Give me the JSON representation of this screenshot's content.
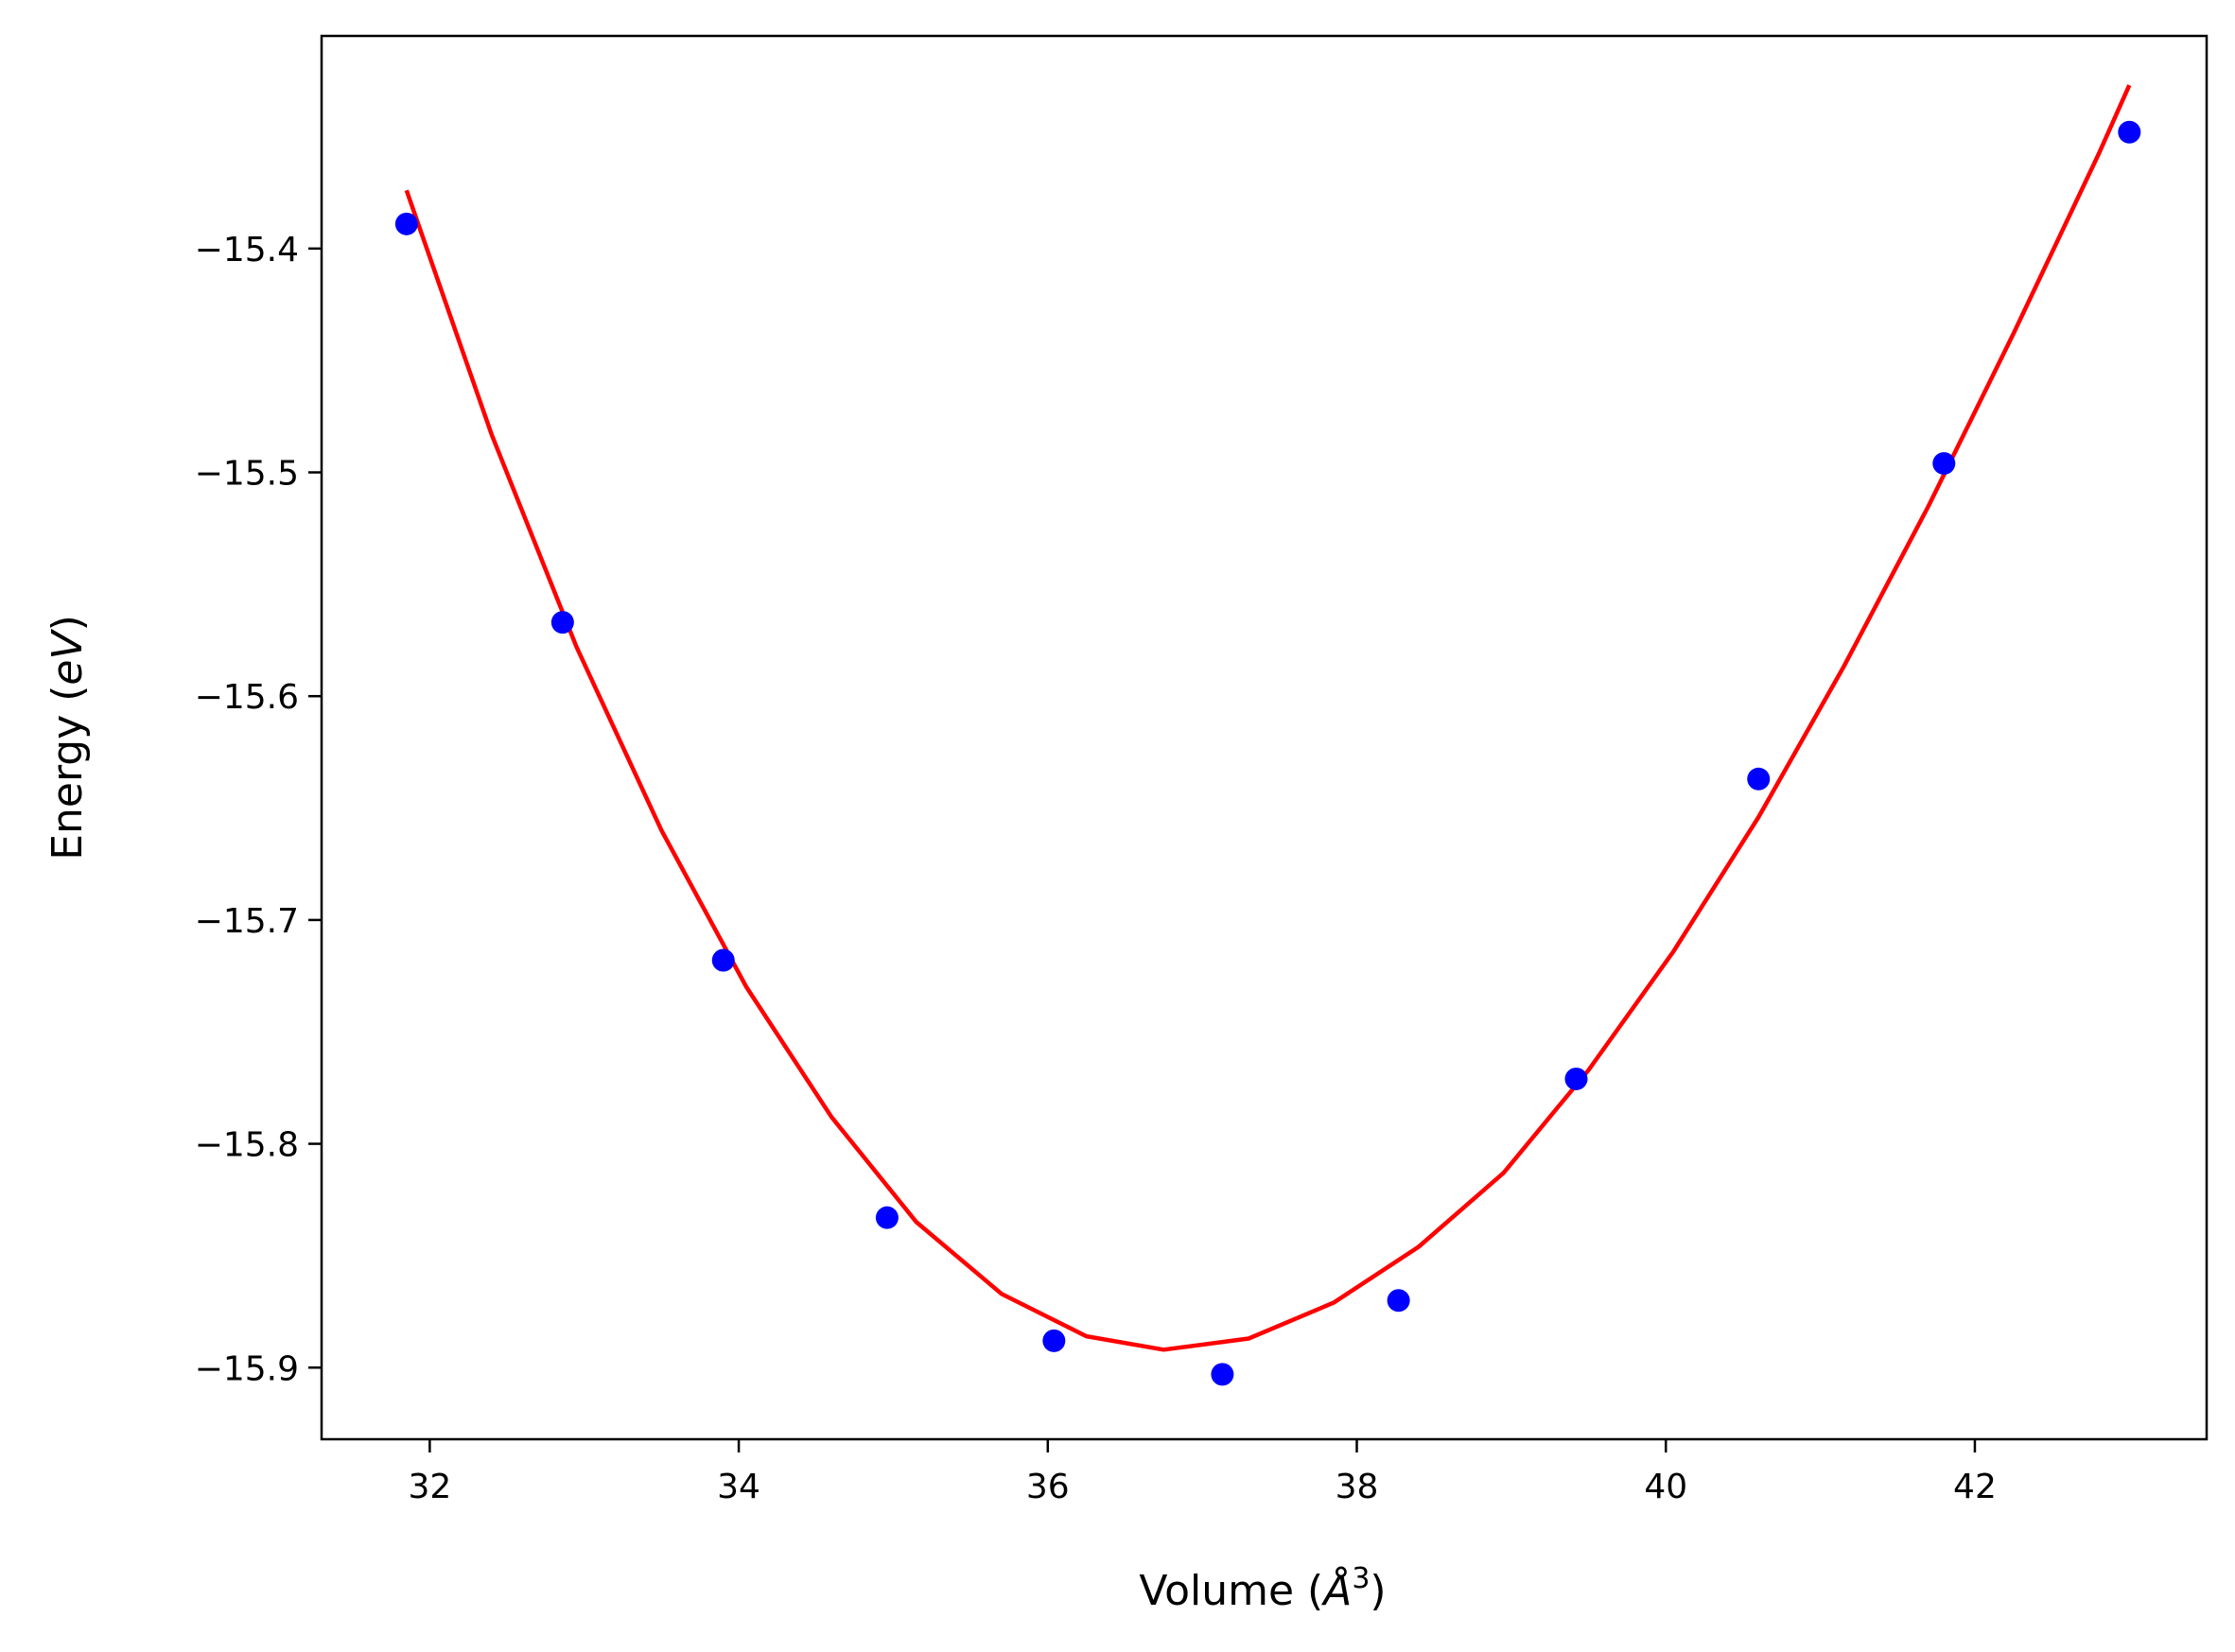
{
  "chart_data": {
    "type": "scatter",
    "title": "",
    "xlabel": {
      "prefix": "Volume (",
      "symbol": "Å",
      "sup": "3",
      "suffix": ")"
    },
    "ylabel": {
      "prefix": "Energy (",
      "symbol": "eV",
      "suffix": ")"
    },
    "xlim": [
      31.3,
      43.5
    ],
    "ylim": [
      -15.932,
      -15.305
    ],
    "xticks": [
      32,
      34,
      36,
      38,
      40,
      42
    ],
    "xtick_labels": [
      "32",
      "34",
      "36",
      "38",
      "40",
      "42"
    ],
    "yticks": [
      -15.4,
      -15.5,
      -15.6,
      -15.7,
      -15.8,
      -15.9
    ],
    "ytick_labels": [
      "−15.4",
      "−15.5",
      "−15.6",
      "−15.7",
      "−15.8",
      "−15.9"
    ],
    "grid": false,
    "series": [
      {
        "kind": "points",
        "color": "#0000ff",
        "x": [
          31.85,
          32.86,
          33.9,
          34.96,
          36.04,
          37.13,
          38.27,
          39.42,
          40.6,
          41.8,
          43.0
        ],
        "y": [
          -15.389,
          -15.567,
          -15.718,
          -15.833,
          -15.888,
          -15.903,
          -15.87,
          -15.771,
          -15.637,
          -15.496,
          -15.348
        ]
      },
      {
        "kind": "fit-curve",
        "color": "#ff0000",
        "x": [
          31.85,
          32.4,
          32.95,
          33.5,
          34.05,
          34.6,
          35.15,
          35.7,
          36.25,
          36.75,
          37.3,
          37.85,
          38.4,
          38.95,
          39.5,
          40.05,
          40.6,
          41.15,
          41.7,
          42.25,
          42.8,
          43.0
        ],
        "y": [
          -15.374,
          -15.483,
          -15.578,
          -15.66,
          -15.73,
          -15.788,
          -15.835,
          -15.867,
          -15.886,
          -15.892,
          -15.887,
          -15.871,
          -15.846,
          -15.813,
          -15.767,
          -15.714,
          -15.654,
          -15.587,
          -15.515,
          -15.438,
          -15.358,
          -15.327
        ]
      }
    ]
  }
}
